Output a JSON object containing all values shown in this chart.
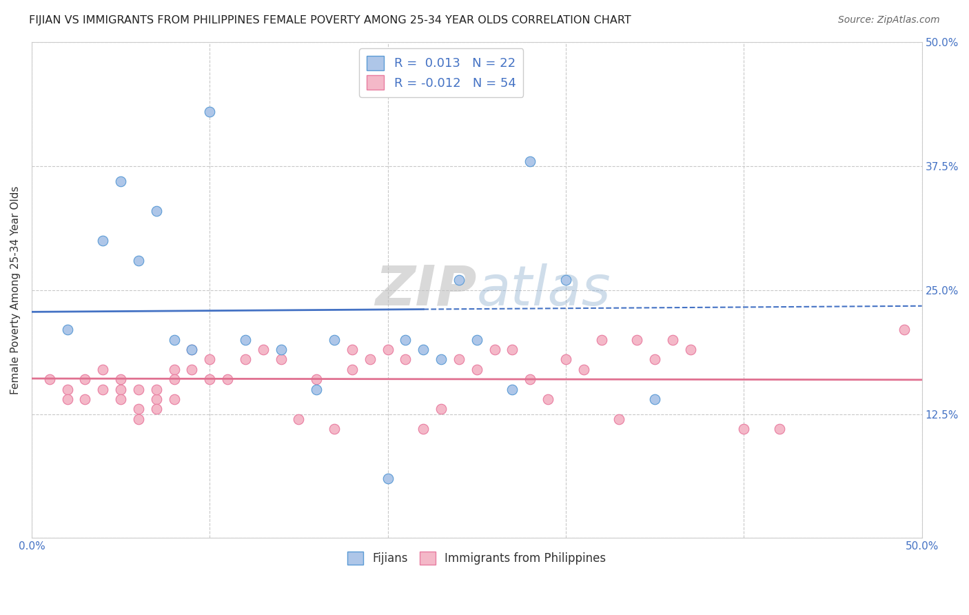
{
  "title": "FIJIAN VS IMMIGRANTS FROM PHILIPPINES FEMALE POVERTY AMONG 25-34 YEAR OLDS CORRELATION CHART",
  "source": "Source: ZipAtlas.com",
  "ylabel": "Female Poverty Among 25-34 Year Olds",
  "xlim": [
    0.0,
    0.5
  ],
  "ylim": [
    0.0,
    0.5
  ],
  "xticks": [
    0.0,
    0.1,
    0.2,
    0.3,
    0.4,
    0.5
  ],
  "yticks": [
    0.0,
    0.125,
    0.25,
    0.375,
    0.5
  ],
  "xticklabels": [
    "0.0%",
    "",
    "",
    "",
    "",
    "50.0%"
  ],
  "yticklabels_right": [
    "",
    "12.5%",
    "25.0%",
    "37.5%",
    "50.0%"
  ],
  "grid_color": "#c8c8c8",
  "background_color": "#ffffff",
  "fijian_color": "#aec6e8",
  "fijian_edge_color": "#5b9bd5",
  "fijian_line_color": "#4472c4",
  "philippines_color": "#f4b8c8",
  "philippines_edge_color": "#e87ca0",
  "philippines_line_color": "#e07090",
  "fijian_R": 0.013,
  "fijian_N": 22,
  "philippines_R": -0.012,
  "philippines_N": 54,
  "fijian_x": [
    0.02,
    0.04,
    0.05,
    0.06,
    0.07,
    0.08,
    0.09,
    0.1,
    0.12,
    0.14,
    0.16,
    0.17,
    0.2,
    0.21,
    0.22,
    0.23,
    0.24,
    0.25,
    0.27,
    0.28,
    0.3,
    0.35
  ],
  "fijian_y": [
    0.21,
    0.3,
    0.36,
    0.28,
    0.33,
    0.2,
    0.19,
    0.43,
    0.2,
    0.19,
    0.15,
    0.2,
    0.06,
    0.2,
    0.19,
    0.18,
    0.26,
    0.2,
    0.15,
    0.38,
    0.26,
    0.14
  ],
  "philippines_x": [
    0.01,
    0.02,
    0.02,
    0.03,
    0.03,
    0.04,
    0.04,
    0.05,
    0.05,
    0.05,
    0.06,
    0.06,
    0.06,
    0.07,
    0.07,
    0.07,
    0.08,
    0.08,
    0.08,
    0.09,
    0.09,
    0.1,
    0.1,
    0.11,
    0.12,
    0.13,
    0.14,
    0.15,
    0.16,
    0.17,
    0.18,
    0.18,
    0.19,
    0.2,
    0.21,
    0.22,
    0.23,
    0.24,
    0.25,
    0.26,
    0.27,
    0.28,
    0.29,
    0.3,
    0.31,
    0.32,
    0.33,
    0.34,
    0.35,
    0.36,
    0.37,
    0.4,
    0.42,
    0.49
  ],
  "philippines_y": [
    0.16,
    0.15,
    0.14,
    0.16,
    0.14,
    0.17,
    0.15,
    0.16,
    0.15,
    0.14,
    0.13,
    0.12,
    0.15,
    0.14,
    0.15,
    0.13,
    0.17,
    0.16,
    0.14,
    0.19,
    0.17,
    0.18,
    0.16,
    0.16,
    0.18,
    0.19,
    0.18,
    0.12,
    0.16,
    0.11,
    0.19,
    0.17,
    0.18,
    0.19,
    0.18,
    0.11,
    0.13,
    0.18,
    0.17,
    0.19,
    0.19,
    0.16,
    0.14,
    0.18,
    0.17,
    0.2,
    0.12,
    0.2,
    0.18,
    0.2,
    0.19,
    0.11,
    0.11,
    0.21
  ],
  "legend_label_fijian": "Fijians",
  "legend_label_philippines": "Immigrants from Philippines"
}
